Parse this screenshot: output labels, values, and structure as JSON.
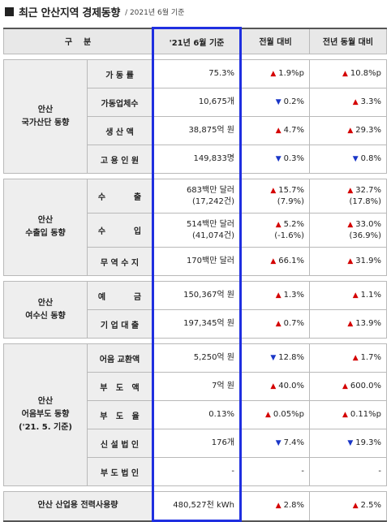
{
  "title": "최근 안산지역 경제동향",
  "subtitle": "/ 2021년 6월 기준",
  "header": {
    "category": "구    분",
    "current": "'21년 6월 기준",
    "mom": "전월 대비",
    "yoy": "전년 동월 대비"
  },
  "groups": [
    {
      "label": "안산\n국가산단 동향",
      "rows": [
        {
          "item": "가 동 률",
          "value": "75.3%",
          "mom": {
            "dir": "up",
            "text": "1.9%p"
          },
          "yoy": {
            "dir": "up",
            "text": "10.8%p"
          }
        },
        {
          "item": "가동업체수",
          "value": "10,675개",
          "mom": {
            "dir": "down",
            "text": "0.2%"
          },
          "yoy": {
            "dir": "up",
            "text": "3.3%"
          }
        },
        {
          "item": "생 산 액",
          "value": "38,875억 원",
          "mom": {
            "dir": "up",
            "text": "4.7%"
          },
          "yoy": {
            "dir": "up",
            "text": "29.3%"
          }
        },
        {
          "item": "고 용 인 원",
          "value": "149,833명",
          "mom": {
            "dir": "down",
            "text": "0.3%"
          },
          "yoy": {
            "dir": "down",
            "text": "0.8%"
          }
        }
      ]
    },
    {
      "label": "안산\n수출입 동향",
      "rows": [
        {
          "item": "수          출",
          "value": "683백만 달러",
          "value2": "(17,242건)",
          "mom": {
            "dir": "up",
            "text": "15.7%",
            "text2": "(7.9%)"
          },
          "yoy": {
            "dir": "up",
            "text": "32.7%",
            "text2": "(17.8%)"
          }
        },
        {
          "item": "수          입",
          "value": "514백만 달러",
          "value2": "(41,074건)",
          "mom": {
            "dir": "up",
            "text": "5.2%",
            "text2": "(-1.6%)"
          },
          "yoy": {
            "dir": "up",
            "text": "33.0%",
            "text2": "(36.9%)"
          }
        },
        {
          "item": "무 역 수 지",
          "value": "170백만 달러",
          "mom": {
            "dir": "up",
            "text": "66.1%"
          },
          "yoy": {
            "dir": "up",
            "text": "31.9%"
          }
        }
      ]
    },
    {
      "label": "안산\n여수신 동향",
      "rows": [
        {
          "item": "예          금",
          "value": "150,367억 원",
          "mom": {
            "dir": "up",
            "text": "1.3%"
          },
          "yoy": {
            "dir": "up",
            "text": "1.1%"
          }
        },
        {
          "item": "기 업 대 출",
          "value": "197,345억 원",
          "mom": {
            "dir": "up",
            "text": "0.7%"
          },
          "yoy": {
            "dir": "up",
            "text": "13.9%"
          }
        }
      ]
    },
    {
      "label": "안산\n어음부도 동향\n('21. 5. 기준)",
      "rows": [
        {
          "item": "어음 교환액",
          "value": "5,250억 원",
          "mom": {
            "dir": "down",
            "text": "12.8%"
          },
          "yoy": {
            "dir": "up",
            "text": "1.7%"
          }
        },
        {
          "item": "부   도   액",
          "value": "7억 원",
          "mom": {
            "dir": "up",
            "text": "40.0%"
          },
          "yoy": {
            "dir": "up",
            "text": "600.0%"
          }
        },
        {
          "item": "부   도   율",
          "value": "0.13%",
          "mom": {
            "dir": "up",
            "text": "0.05%p"
          },
          "yoy": {
            "dir": "up",
            "text": "0.11%p"
          }
        },
        {
          "item": "신 설 법 인",
          "value": "176개",
          "mom": {
            "dir": "down",
            "text": "7.4%"
          },
          "yoy": {
            "dir": "down",
            "text": "19.3%"
          }
        },
        {
          "item": "부 도 법 인",
          "value": "-",
          "mom": {
            "dir": "none",
            "text": "-"
          },
          "yoy": {
            "dir": "none",
            "text": "-"
          }
        }
      ]
    }
  ],
  "footer": {
    "label": "안산 산업용 전력사용량",
    "value": "480,527천 kWh",
    "mom": {
      "dir": "up",
      "text": "2.8%"
    },
    "yoy": {
      "dir": "up",
      "text": "2.5%"
    }
  },
  "symbols": {
    "up": "▲",
    "down": "▼"
  },
  "colors": {
    "up": "#d40000",
    "down": "#1a36c7",
    "highlight": "#1f2fe0"
  }
}
